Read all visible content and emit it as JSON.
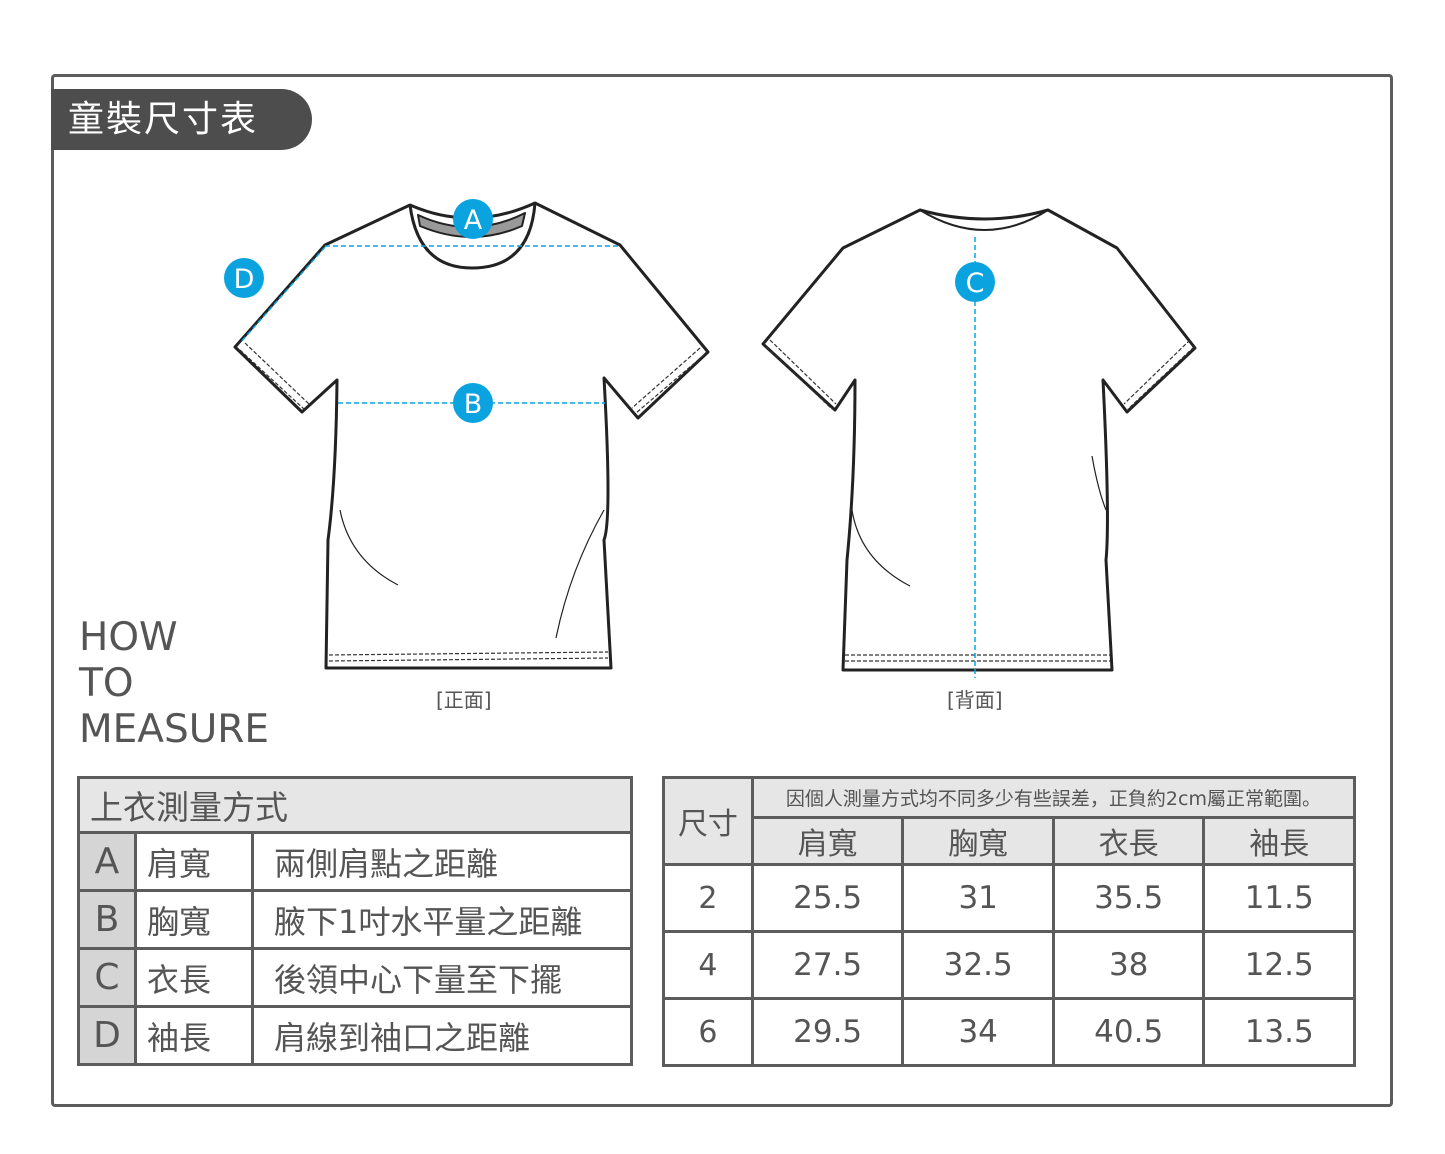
{
  "title": "童裝尺寸表",
  "how_to_measure": [
    "HOW",
    "TO",
    "MEASURE"
  ],
  "captions": {
    "front": "[正面]",
    "back": "[背面]"
  },
  "markers": [
    "A",
    "B",
    "C",
    "D"
  ],
  "accent_color": "#0aa3e0",
  "method_table": {
    "header": "上衣測量方式",
    "rows": [
      {
        "letter": "A",
        "name": "肩寬",
        "desc": "兩側肩點之距離"
      },
      {
        "letter": "B",
        "name": "胸寬",
        "desc": "腋下1吋水平量之距離"
      },
      {
        "letter": "C",
        "name": "衣長",
        "desc": "後領中心下量至下擺"
      },
      {
        "letter": "D",
        "name": "袖長",
        "desc": "肩線到袖口之距離"
      }
    ]
  },
  "size_table": {
    "size_header": "尺寸",
    "note": "因個人測量方式均不同多少有些誤差，正負約2cm屬正常範圍。",
    "columns": [
      "肩寬",
      "胸寬",
      "衣長",
      "袖長"
    ],
    "rows": [
      {
        "size": "2",
        "values": [
          "25.5",
          "31",
          "35.5",
          "11.5"
        ]
      },
      {
        "size": "4",
        "values": [
          "27.5",
          "32.5",
          "38",
          "12.5"
        ]
      },
      {
        "size": "6",
        "values": [
          "29.5",
          "34",
          "40.5",
          "13.5"
        ]
      }
    ]
  }
}
